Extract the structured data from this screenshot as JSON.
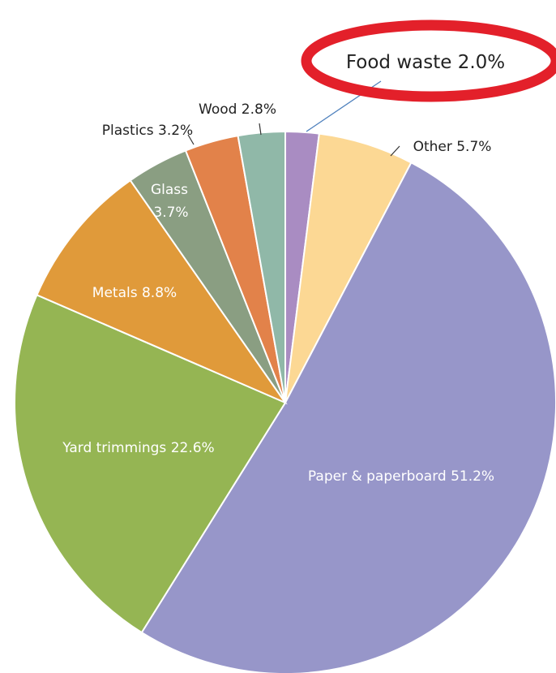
{
  "chart_data": {
    "type": "pie",
    "title": "",
    "slices": [
      {
        "name": "Food waste",
        "value": 2.0,
        "label": "Food waste 2.0%",
        "color": "#A98CC2"
      },
      {
        "name": "Other",
        "value": 5.7,
        "label": "Other 5.7%",
        "color": "#FCD894"
      },
      {
        "name": "Paper & paperboard",
        "value": 51.2,
        "label": "Paper & paperboard 51.2%",
        "color": "#9796C9"
      },
      {
        "name": "Yard trimmings",
        "value": 22.6,
        "label": "Yard trimmings 22.6%",
        "color": "#95B553"
      },
      {
        "name": "Metals",
        "value": 8.8,
        "label": "Metals 8.8%",
        "color": "#E09A3A"
      },
      {
        "name": "Glass",
        "value": 3.7,
        "label_lines": [
          "Glass",
          "3.7%"
        ],
        "color": "#8A9E82"
      },
      {
        "name": "Plastics",
        "value": 3.2,
        "label": "Plastics 3.2%",
        "color": "#E2824A"
      },
      {
        "name": "Wood",
        "value": 2.8,
        "label": "Wood 2.8%",
        "color": "#90B8A8"
      }
    ],
    "callout": {
      "text": "Food waste 2.0%",
      "highlight_color": "#E3202A"
    }
  }
}
